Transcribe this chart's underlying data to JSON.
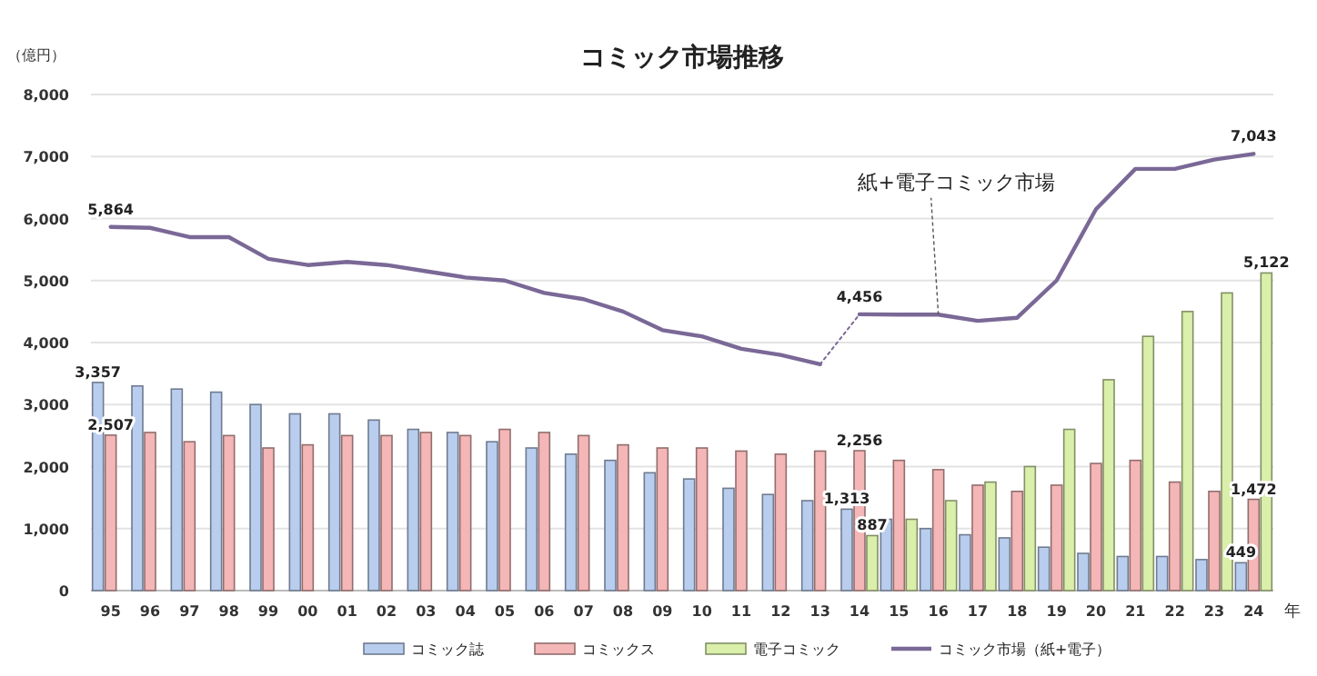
{
  "chart_data": {
    "type": "bar",
    "title": "コミック市場推移",
    "ylabel": "（億円）",
    "xlabel": "年",
    "categories": [
      "95",
      "96",
      "97",
      "98",
      "99",
      "00",
      "01",
      "02",
      "03",
      "04",
      "05",
      "06",
      "07",
      "08",
      "09",
      "10",
      "11",
      "12",
      "13",
      "14",
      "15",
      "16",
      "17",
      "18",
      "19",
      "20",
      "21",
      "22",
      "23",
      "24"
    ],
    "series": [
      {
        "name": "コミック誌",
        "color": "#b9cdee",
        "values": [
          3357,
          3300,
          3250,
          3200,
          3000,
          2850,
          2850,
          2750,
          2600,
          2550,
          2400,
          2300,
          2200,
          2100,
          1900,
          1800,
          1650,
          1550,
          1450,
          1313,
          1150,
          1000,
          900,
          850,
          700,
          600,
          550,
          550,
          500,
          449
        ],
        "value_labels": [
          "3,357",
          null,
          null,
          null,
          null,
          null,
          null,
          null,
          null,
          null,
          null,
          null,
          null,
          null,
          null,
          null,
          null,
          null,
          null,
          "1,313",
          null,
          null,
          null,
          null,
          null,
          null,
          null,
          null,
          null,
          "449"
        ]
      },
      {
        "name": "コミックス",
        "color": "#f4b6b6",
        "values": [
          2507,
          2550,
          2400,
          2500,
          2300,
          2350,
          2500,
          2500,
          2550,
          2500,
          2600,
          2550,
          2500,
          2350,
          2300,
          2300,
          2250,
          2200,
          2250,
          2256,
          2100,
          1950,
          1700,
          1600,
          1700,
          2050,
          2100,
          1750,
          1600,
          1472
        ],
        "value_labels": [
          "2,507",
          null,
          null,
          null,
          null,
          null,
          null,
          null,
          null,
          null,
          null,
          null,
          null,
          null,
          null,
          null,
          null,
          null,
          null,
          "2,256",
          null,
          null,
          null,
          null,
          null,
          null,
          null,
          null,
          null,
          "1,472"
        ]
      },
      {
        "name": "電子コミック",
        "color": "#d9efaa",
        "values": [
          null,
          null,
          null,
          null,
          null,
          null,
          null,
          null,
          null,
          null,
          null,
          null,
          null,
          null,
          null,
          null,
          null,
          null,
          null,
          887,
          1150,
          1450,
          1750,
          2000,
          2600,
          3400,
          4100,
          4500,
          4800,
          5122
        ],
        "value_labels": [
          null,
          null,
          null,
          null,
          null,
          null,
          null,
          null,
          null,
          null,
          null,
          null,
          null,
          null,
          null,
          null,
          null,
          null,
          null,
          "887",
          null,
          null,
          null,
          null,
          null,
          null,
          null,
          null,
          null,
          "5,122"
        ]
      },
      {
        "name": "コミック市場（紙+電子）",
        "type": "line",
        "color": "#7a6896",
        "values": [
          null,
          null,
          null,
          null,
          null,
          null,
          null,
          null,
          null,
          null,
          null,
          null,
          null,
          null,
          null,
          null,
          null,
          null,
          null,
          4456,
          4450,
          4450,
          4350,
          4400,
          5000,
          6150,
          6800,
          6800,
          6950,
          7043
        ],
        "value_labels": [
          null,
          null,
          null,
          null,
          null,
          null,
          null,
          null,
          null,
          null,
          null,
          null,
          null,
          null,
          null,
          null,
          null,
          null,
          null,
          "4,456",
          null,
          null,
          null,
          null,
          null,
          null,
          null,
          null,
          null,
          "7,043"
        ]
      },
      {
        "type": "line",
        "color": "#7a6896",
        "values": [
          5864,
          5850,
          5700,
          5700,
          5350,
          5250,
          5300,
          5250,
          5150,
          5050,
          5000,
          4800,
          4700,
          4500,
          4200,
          4100,
          3900,
          3800,
          3650,
          null,
          null,
          null,
          null,
          null,
          null,
          null,
          null,
          null,
          null,
          null
        ],
        "value_labels": [
          "5,864",
          null,
          null,
          null,
          null,
          null,
          null,
          null,
          null,
          null,
          null,
          null,
          null,
          null,
          null,
          null,
          null,
          null,
          null,
          null,
          null,
          null,
          null,
          null,
          null,
          null,
          null,
          null,
          null,
          null
        ]
      },
      {
        "type": "line",
        "color": "#7a6896",
        "line_style": "dotted",
        "values": [
          null,
          null,
          null,
          null,
          null,
          null,
          null,
          null,
          null,
          null,
          null,
          null,
          null,
          null,
          null,
          null,
          null,
          null,
          3650,
          4456,
          null,
          null,
          null,
          null,
          null,
          null,
          null,
          null,
          null,
          null
        ]
      }
    ],
    "annotations": [
      {
        "text": "紙+電子コミック市場",
        "x": "16",
        "y": 4450
      }
    ],
    "ylim": [
      0,
      8000
    ],
    "yticks": [
      {
        "value": 0,
        "label": "0"
      },
      {
        "value": 1000,
        "label": "1,000"
      },
      {
        "value": 2000,
        "label": "2,000"
      },
      {
        "value": 3000,
        "label": "3,000"
      },
      {
        "value": 4000,
        "label": "4,000"
      },
      {
        "value": 5000,
        "label": "5,000"
      },
      {
        "value": 6000,
        "label": "6,000"
      },
      {
        "value": 7000,
        "label": "7,000"
      },
      {
        "value": 8000,
        "label": "8,000"
      }
    ],
    "grid": "y",
    "legend": "bottom"
  }
}
